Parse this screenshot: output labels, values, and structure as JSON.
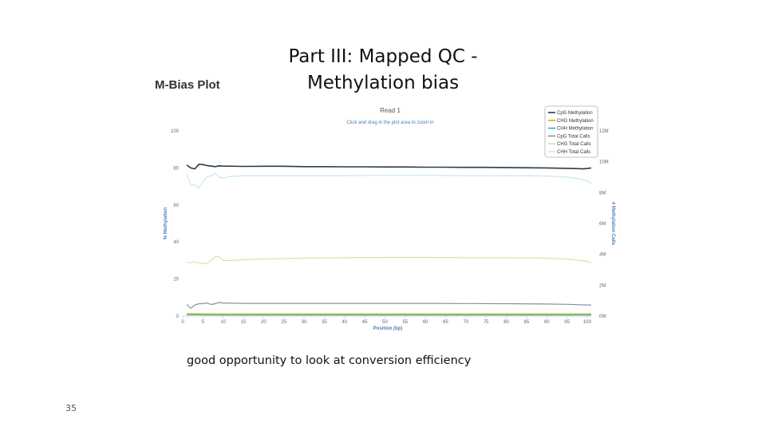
{
  "slide": {
    "title_line1": "Part III: Mapped QC -",
    "title_line2": "Methylation bias",
    "caption": "good opportunity to look at conversion efficiency",
    "slide_number": "35"
  },
  "plot_heading": "M-Bias Plot",
  "chart_data": {
    "type": "line",
    "title": "Read 1",
    "subtitle": "Click and drag in the plot area to zoom in",
    "xlabel": "Position (bp)",
    "ylabel": "% Methylation",
    "y2label": "# Methylation Calls",
    "xlim": [
      0,
      101
    ],
    "ylim": [
      0,
      100
    ],
    "y2lim": [
      0,
      12
    ],
    "x_ticks": [
      0,
      5,
      10,
      15,
      20,
      25,
      30,
      35,
      40,
      45,
      50,
      55,
      60,
      65,
      70,
      75,
      80,
      85,
      90,
      95,
      100
    ],
    "y_ticks": [
      0,
      20,
      40,
      60,
      80,
      100
    ],
    "y2_ticks": [
      "0M",
      "2M",
      "4M",
      "6M",
      "8M",
      "10M",
      "12M"
    ],
    "y2_tick_values": [
      0,
      2,
      4,
      6,
      8,
      10,
      12
    ],
    "legend_position": "top-right",
    "grid": false,
    "series": [
      {
        "name": "CpG Methylation",
        "axis": "left",
        "color": "#2b3a4a",
        "width": 1.6,
        "x": [
          1,
          2,
          3,
          4,
          5,
          6,
          7,
          8,
          9,
          10,
          15,
          20,
          25,
          30,
          35,
          40,
          45,
          50,
          55,
          60,
          65,
          70,
          75,
          80,
          85,
          90,
          95,
          98,
          99,
          100,
          101
        ],
        "y": [
          81.5,
          80,
          79.5,
          82,
          81.8,
          81.3,
          81,
          80.7,
          81.1,
          81,
          80.8,
          80.9,
          80.9,
          80.7,
          80.7,
          80.6,
          80.6,
          80.5,
          80.5,
          80.4,
          80.4,
          80.3,
          80.3,
          80.2,
          80.1,
          80,
          79.8,
          79.6,
          79.5,
          79.7,
          80
        ]
      },
      {
        "name": "CHG Methylation",
        "axis": "left",
        "color": "#c9b200",
        "width": 1.2,
        "x": [
          1,
          10,
          20,
          30,
          40,
          50,
          60,
          70,
          80,
          90,
          100,
          101
        ],
        "y": [
          1.3,
          1.2,
          1.2,
          1.2,
          1.2,
          1.2,
          1.2,
          1.2,
          1.2,
          1.2,
          1.2,
          1.2
        ]
      },
      {
        "name": "CHH Methylation",
        "axis": "left",
        "color": "#2fb3a6",
        "width": 1.2,
        "x": [
          1,
          10,
          20,
          30,
          40,
          50,
          60,
          70,
          80,
          90,
          100,
          101
        ],
        "y": [
          0.7,
          0.6,
          0.6,
          0.6,
          0.6,
          0.6,
          0.6,
          0.6,
          0.6,
          0.6,
          0.6,
          0.6
        ]
      },
      {
        "name": "CpG Total Calls",
        "axis": "right",
        "color": "#8a9198",
        "width": 1.2,
        "x": [
          1,
          2,
          3,
          4,
          5,
          6,
          7,
          8,
          9,
          10,
          15,
          20,
          30,
          40,
          50,
          60,
          70,
          80,
          90,
          95,
          100,
          101
        ],
        "y": [
          0.75,
          0.5,
          0.72,
          0.8,
          0.8,
          0.85,
          0.75,
          0.8,
          0.88,
          0.85,
          0.82,
          0.82,
          0.82,
          0.82,
          0.82,
          0.82,
          0.81,
          0.8,
          0.78,
          0.76,
          0.72,
          0.72
        ]
      },
      {
        "name": "CHG Total Calls",
        "axis": "right",
        "color": "#dfe0a8",
        "width": 1.2,
        "x": [
          1,
          2,
          3,
          4,
          5,
          6,
          7,
          8,
          9,
          10,
          12,
          15,
          20,
          30,
          40,
          50,
          60,
          70,
          80,
          90,
          95,
          100,
          101
        ],
        "y": [
          3.5,
          3.45,
          3.5,
          3.45,
          3.4,
          3.4,
          3.6,
          3.85,
          3.85,
          3.6,
          3.6,
          3.65,
          3.7,
          3.75,
          3.78,
          3.8,
          3.8,
          3.78,
          3.78,
          3.75,
          3.7,
          3.55,
          3.45
        ]
      },
      {
        "name": "CHH Total Calls",
        "axis": "right",
        "color": "#c8e9ec",
        "width": 1.2,
        "x": [
          1,
          2,
          3,
          4,
          5,
          6,
          7,
          8,
          9,
          10,
          12,
          15,
          20,
          30,
          40,
          50,
          60,
          70,
          80,
          90,
          95,
          98,
          100,
          101
        ],
        "y": [
          9.2,
          8.5,
          8.5,
          8.3,
          8.7,
          9.0,
          9.1,
          9.25,
          9.0,
          8.95,
          9.05,
          9.1,
          9.1,
          9.1,
          9.1,
          9.12,
          9.12,
          9.1,
          9.1,
          9.08,
          9.0,
          8.9,
          8.75,
          8.6
        ]
      }
    ]
  }
}
